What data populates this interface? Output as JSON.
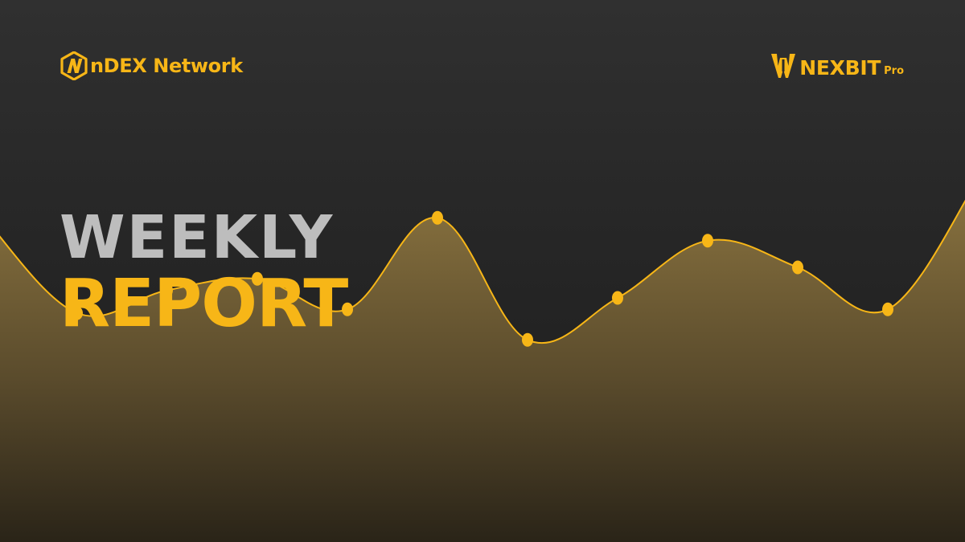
{
  "brand_left": {
    "name": "nDEX Network",
    "logo_icon": "ndex-hexagon-n-logo"
  },
  "brand_right": {
    "name": "NEXBIT",
    "suffix": "Pro",
    "logo_icon": "nexbit-crown-logo"
  },
  "headline": {
    "line1": "WEEKLY",
    "line2": "REPORT"
  },
  "colors": {
    "accent": "#f7b617",
    "headline_gray": "#bdbdbd",
    "background": "#2a2a2a",
    "area_fill_top": "#8b7440",
    "area_fill_bottom": "#2a2418"
  },
  "chart_data": {
    "type": "area",
    "values": [
      0.84,
      0.6,
      0.66,
      0.69,
      0.61,
      0.85,
      0.53,
      0.64,
      0.79,
      0.72,
      0.61,
      0.95
    ],
    "markers": [
      false,
      true,
      true,
      true,
      true,
      true,
      true,
      true,
      true,
      true,
      true,
      false
    ],
    "title": "",
    "xlabel": "",
    "ylabel": "",
    "grid": false
  }
}
